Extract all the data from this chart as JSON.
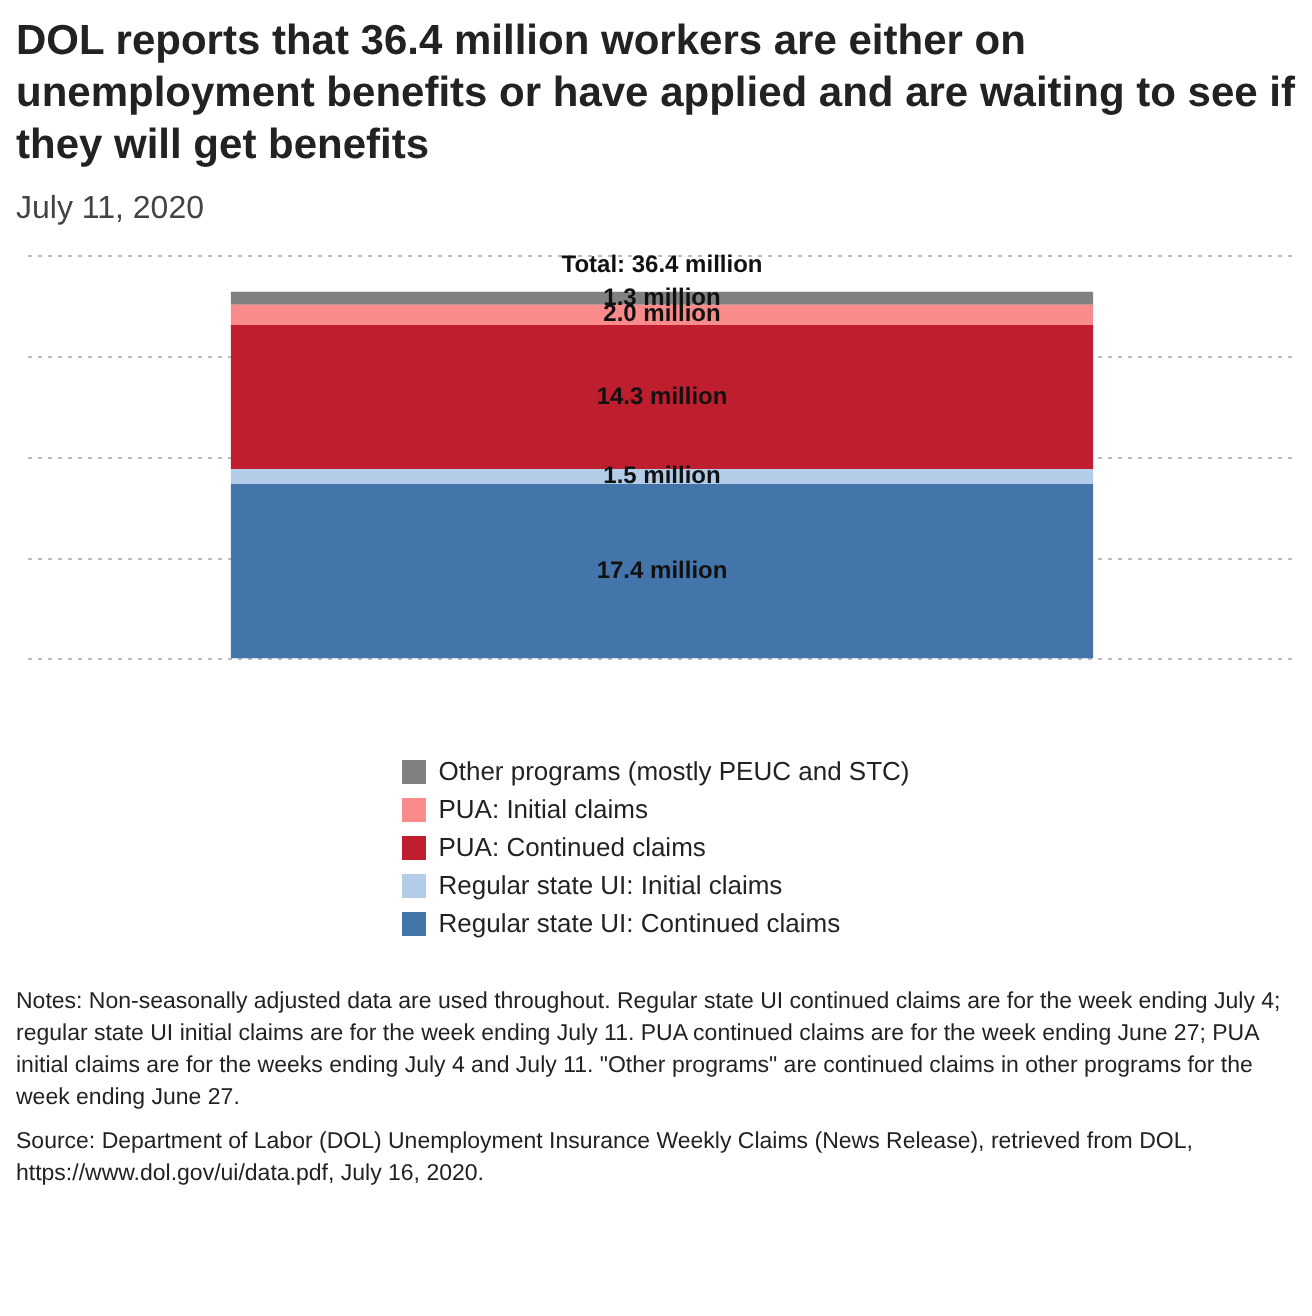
{
  "chart_data": {
    "type": "bar",
    "title": "DOL reports that 36.4 million workers are either on unemployment benefits or have applied and are waiting to see if they will get benefits",
    "subtitle": "July 11, 2020",
    "categories": [
      null
    ],
    "stacked": true,
    "ylim": [
      0,
      40
    ],
    "yticks": [
      {
        "value": 0,
        "label": null
      },
      {
        "value": 10,
        "label": null
      },
      {
        "value": 20,
        "label": null
      },
      {
        "value": 30,
        "label": null
      },
      {
        "value": 40,
        "label": null
      }
    ],
    "grid": "y",
    "legend": "bottom",
    "totals": [
      "Total: 36.4 million"
    ],
    "series": [
      {
        "name": "Regular state UI: Continued claims",
        "color": "#4374aa",
        "values": [
          17.4
        ],
        "value_labels": [
          "17.4 million"
        ]
      },
      {
        "name": "Regular state UI: Initial claims",
        "color": "#b3cde9",
        "values": [
          1.5
        ],
        "value_labels": [
          "1.5 million"
        ]
      },
      {
        "name": "PUA: Continued claims",
        "color": "#be1e2d",
        "values": [
          14.3
        ],
        "value_labels": [
          "14.3 million"
        ]
      },
      {
        "name": "PUA: Initial claims",
        "color": "#f98b8b",
        "values": [
          2.0
        ],
        "value_labels": [
          "2.0 million"
        ]
      },
      {
        "name": "Other programs (mostly PEUC and STC)",
        "color": "#808080",
        "values": [
          1.3
        ],
        "value_labels": [
          "1.3 million"
        ]
      }
    ],
    "annotations": [
      "Notes: Non-seasonally adjusted data are used throughout. Regular state UI continued claims are for the week ending July 4; regular state UI initial claims are for the week ending July 11. PUA continued claims are for the week ending June 27; PUA initial claims are for the weeks ending July 4 and July 11. \"Other programs\" are continued claims in other programs for the week ending June 27.",
      "Source: Department of Labor (DOL) Unemployment Insurance Weekly Claims (News Release), retrieved from DOL, https://www.dol.gov/ui/data.pdf, July 16, 2020."
    ]
  }
}
